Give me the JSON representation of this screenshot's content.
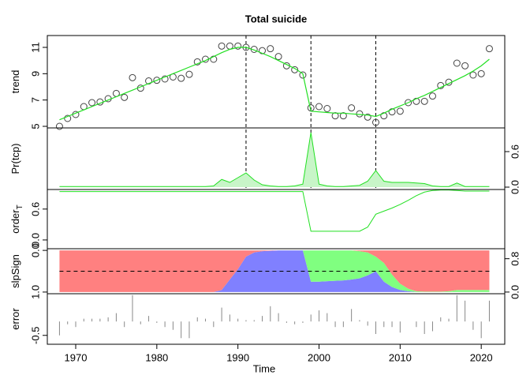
{
  "chart_data": [
    {
      "type": "scatter-line",
      "title": "Total suicide",
      "ylabel": "trend",
      "yaxis": "left",
      "x": [
        1968,
        1969,
        1970,
        1971,
        1972,
        1973,
        1974,
        1975,
        1976,
        1977,
        1978,
        1979,
        1980,
        1981,
        1982,
        1983,
        1984,
        1985,
        1986,
        1987,
        1988,
        1989,
        1990,
        1991,
        1992,
        1993,
        1994,
        1995,
        1996,
        1997,
        1998,
        1999,
        2000,
        2001,
        2002,
        2003,
        2004,
        2005,
        2006,
        2007,
        2008,
        2009,
        2010,
        2011,
        2012,
        2013,
        2014,
        2015,
        2016,
        2017,
        2018,
        2019,
        2020,
        2021
      ],
      "xlim": [
        1966.5,
        2022.9
      ],
      "series": [
        {
          "color": "#444444",
          "values": [
            5.0,
            5.6,
            5.9,
            6.5,
            6.8,
            6.85,
            7.1,
            7.5,
            7.2,
            8.7,
            7.9,
            8.45,
            8.5,
            8.6,
            8.75,
            8.65,
            8.95,
            9.9,
            10.1,
            10.1,
            11.1,
            11.1,
            11.1,
            11.0,
            10.85,
            10.75,
            10.9,
            10.3,
            9.6,
            9.3,
            8.9,
            6.4,
            6.5,
            6.35,
            5.8,
            5.8,
            6.4,
            5.95,
            5.7,
            5.3,
            5.8,
            6.1,
            6.15,
            6.8,
            6.9,
            6.9,
            7.3,
            8.1,
            8.35,
            9.8,
            9.6,
            8.9,
            9.0,
            10.9
          ]
        },
        {
          "color": "#22e022",
          "values": [
            5.5,
            5.75,
            6.0,
            6.25,
            6.5,
            6.75,
            7.0,
            7.25,
            7.5,
            7.75,
            8.0,
            8.25,
            8.5,
            8.75,
            9.0,
            9.25,
            9.5,
            9.75,
            10.0,
            10.3,
            10.6,
            10.85,
            11.0,
            11.0,
            10.8,
            10.55,
            10.3,
            10.0,
            9.7,
            9.4,
            9.0,
            6.15,
            6.1,
            6.05,
            6.0,
            6.0,
            5.95,
            5.9,
            5.85,
            5.75,
            6.0,
            6.3,
            6.55,
            6.8,
            7.1,
            7.35,
            7.65,
            7.95,
            8.25,
            8.55,
            8.85,
            9.2,
            9.6,
            10.1
          ]
        }
      ],
      "changepoints": [
        1991,
        1999,
        2007
      ],
      "ylim": [
        4.88,
        11.9
      ],
      "yticks": [
        5,
        7,
        9,
        11
      ]
    },
    {
      "type": "area",
      "ylabel": "Pr(tcp)",
      "yaxis": "right",
      "color": "#22e022",
      "fill": "#c8f5c8",
      "values": [
        0.01,
        0.01,
        0.01,
        0.01,
        0.01,
        0.01,
        0.01,
        0.01,
        0.01,
        0.01,
        0.01,
        0.01,
        0.01,
        0.01,
        0.01,
        0.01,
        0.01,
        0.01,
        0.01,
        0.02,
        0.13,
        0.08,
        0.16,
        0.24,
        0.12,
        0.04,
        0.02,
        0.01,
        0.01,
        0.02,
        0.05,
        0.92,
        0.05,
        0.02,
        0.01,
        0.01,
        0.02,
        0.03,
        0.1,
        0.28,
        0.1,
        0.08,
        0.08,
        0.08,
        0.07,
        0.06,
        0.02,
        0.01,
        0.01,
        0.07,
        0.01,
        0.01,
        0.01,
        0.01
      ],
      "ylim": [
        -0.04,
        1.0
      ],
      "yticks": [
        {
          "value": 0,
          "label": "0.0"
        },
        0.6
      ]
    },
    {
      "type": "line",
      "ylabel": "order",
      "ylabel_sub": "T",
      "yaxis": "left",
      "color": "#22e022",
      "values": [
        0.94,
        0.94,
        0.94,
        0.94,
        0.94,
        0.94,
        0.94,
        0.94,
        0.94,
        0.94,
        0.94,
        0.94,
        0.94,
        0.94,
        0.94,
        0.94,
        0.94,
        0.94,
        0.94,
        0.94,
        0.94,
        0.94,
        0.94,
        0.94,
        0.94,
        0.94,
        0.94,
        0.94,
        0.94,
        0.94,
        0.94,
        0.17,
        0.17,
        0.17,
        0.17,
        0.17,
        0.17,
        0.17,
        0.25,
        0.5,
        0.56,
        0.62,
        0.69,
        0.77,
        0.86,
        0.93,
        0.96,
        0.97,
        0.97,
        0.96,
        0.95,
        0.95,
        0.95,
        0.95
      ],
      "ylim": [
        -0.17,
        0.98
      ],
      "yticks": [
        {
          "value": 0,
          "label": "0.0"
        },
        0.6
      ]
    },
    {
      "type": "stacked-area",
      "ylabel": "slpSign",
      "yaxis": "both",
      "series": [
        {
          "color": "#8080ff",
          "axis": "y2",
          "values": [
            0,
            0,
            0,
            0,
            0,
            0,
            0,
            0,
            0,
            0,
            0,
            0,
            0,
            0,
            0,
            0,
            0,
            0,
            0,
            0,
            0.05,
            0.3,
            0.55,
            0.85,
            0.95,
            0.98,
            0.99,
            1,
            1,
            1,
            1,
            0.25,
            0.25,
            0.26,
            0.27,
            0.28,
            0.3,
            0.33,
            0.4,
            0.5,
            0.25,
            0.12,
            0.05,
            0.02,
            0,
            0,
            0,
            0,
            0,
            0,
            0,
            0,
            0,
            0
          ]
        },
        {
          "color": "#80ff80",
          "axis": "y2",
          "values": [
            0,
            0,
            0,
            0,
            0,
            0,
            0,
            0,
            0,
            0,
            0,
            0,
            0,
            0,
            0,
            0,
            0,
            0,
            0,
            0,
            0,
            0,
            0,
            0,
            0,
            0,
            0,
            0,
            0,
            0,
            0,
            0.75,
            0.75,
            0.74,
            0.73,
            0.72,
            0.7,
            0.65,
            0.55,
            0.35,
            0.45,
            0.3,
            0.15,
            0.06,
            0.02,
            0.01,
            0.01,
            0.01,
            0.02,
            0.05,
            0.05,
            0.05,
            0.05,
            0.05
          ]
        },
        {
          "color": "#ff8080",
          "axis": "y2",
          "values": [
            1,
            1,
            1,
            1,
            1,
            1,
            1,
            1,
            1,
            1,
            1,
            1,
            1,
            1,
            1,
            1,
            1,
            1,
            1,
            1,
            0.95,
            0.7,
            0.45,
            0.15,
            0.05,
            0.02,
            0.01,
            0,
            0,
            0,
            0,
            0,
            0,
            0,
            0,
            0,
            0,
            0.02,
            0.05,
            0.15,
            0.3,
            0.58,
            0.8,
            0.92,
            0.98,
            0.99,
            0.99,
            0.99,
            0.98,
            0.95,
            0.95,
            0.95,
            0.95,
            0.95
          ]
        }
      ],
      "refline": 0.5,
      "ylim": [
        1.04,
        -0.04
      ],
      "yticks": [
        {
          "value": 0,
          "label": "0.0"
        },
        {
          "value": 1,
          "label": "1.0"
        }
      ],
      "y2lim": [
        -0.04,
        1.04
      ],
      "y2ticks": [
        {
          "value": 0,
          "label": "0.0"
        },
        0.8
      ]
    },
    {
      "type": "spike",
      "ylabel": "error",
      "yaxis": "left",
      "color": "#888888",
      "values": [
        -0.5,
        -0.1,
        -0.2,
        0.1,
        0.1,
        0.1,
        0.15,
        0.3,
        -0.2,
        0.95,
        -0.1,
        0.2,
        -0.05,
        -0.2,
        -0.3,
        -0.6,
        -0.6,
        0.15,
        0.1,
        -0.2,
        0.5,
        0.25,
        0.1,
        0.05,
        0.05,
        0.2,
        0.55,
        0.3,
        -0.05,
        -0.1,
        -0.05,
        0.25,
        0.4,
        0.3,
        -0.2,
        -0.2,
        0.45,
        0.05,
        -0.15,
        -0.45,
        -0.2,
        -0.2,
        -0.4,
        0.0,
        -0.2,
        -0.45,
        -0.35,
        0.15,
        0.1,
        0.95,
        0.75,
        -0.3,
        -0.6,
        0.75
      ],
      "ylim": [
        -0.82,
        1.0
      ],
      "yticks": [
        -0.5
      ],
      "xlabel": "Time",
      "xticks": [
        1970,
        1980,
        1990,
        2000,
        2010,
        2020
      ]
    }
  ]
}
